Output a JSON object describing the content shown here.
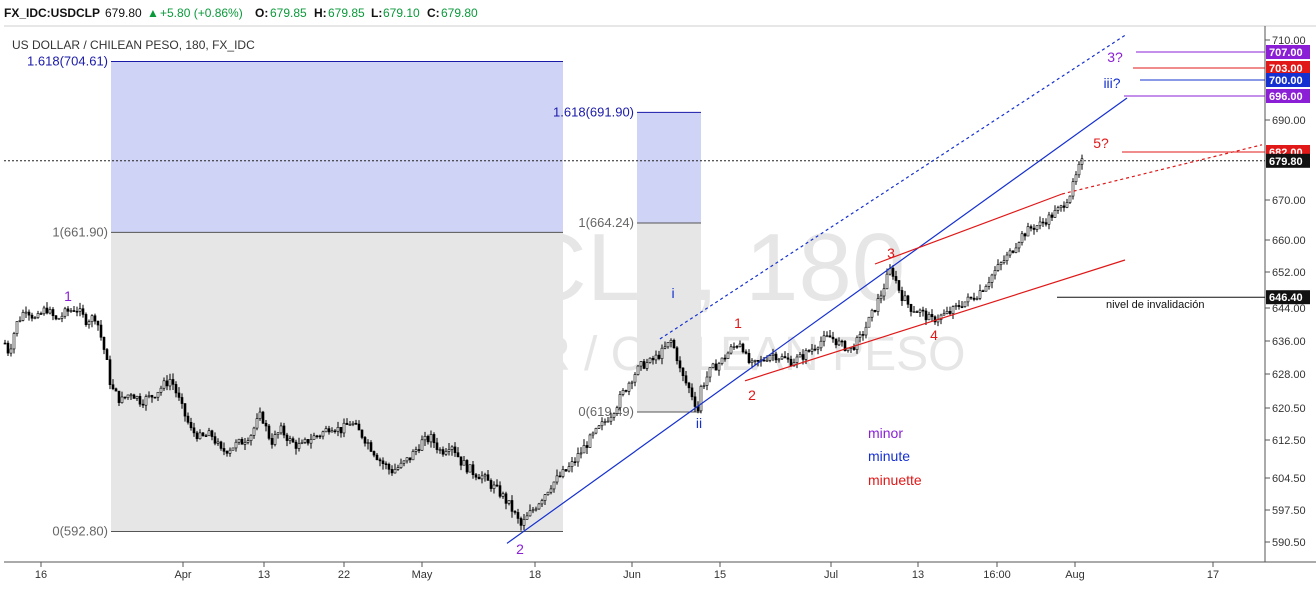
{
  "topbar": {
    "symbol": "FX_IDC:USDCLP",
    "price": "679.80",
    "change": "+5.80 (+0.86%)",
    "o_label": "O:",
    "o_val": "679.85",
    "h_label": "H:",
    "h_val": "679.85",
    "l_label": "L:",
    "l_val": "679.10",
    "c_label": "C:",
    "c_val": "679.80"
  },
  "colors": {
    "minor": "#8a1fd6",
    "minute": "#1530d0",
    "minuette": "#e01818",
    "fib_fill": "#cfd3f5",
    "range_fill": "#e6e6e6",
    "candle": "#000000",
    "watermark": "#e6e6e6"
  },
  "chart_data": {
    "type": "candlestick",
    "title": "US DOLLAR / CHILEAN PESO, 180, FX_IDC",
    "watermark": {
      "line1": "USDCLP, 180",
      "line2": "US DOLLAR / CHILEAN PESO"
    },
    "y_ticks": [
      "710.00",
      "690.00",
      "670.00",
      "660.00",
      "652.00",
      "644.00",
      "636.00",
      "628.00",
      "620.50",
      "612.50",
      "604.50",
      "597.50",
      "590.50"
    ],
    "y_tick_values": [
      710,
      690,
      670,
      660,
      652,
      644,
      636,
      628,
      620.5,
      612.5,
      604.5,
      597.5,
      590.5
    ],
    "x_ticks": [
      "16",
      "Apr",
      "13",
      "22",
      "May",
      "18",
      "Jun",
      "15",
      "Jul",
      "13",
      "16:00",
      "Aug",
      "17"
    ],
    "current_price": 679.8,
    "price_tags": [
      {
        "label": "707.00",
        "value": 707,
        "color": "minor"
      },
      {
        "label": "703.00",
        "value": 703,
        "color": "minuette"
      },
      {
        "label": "700.00",
        "value": 700,
        "color": "minute"
      },
      {
        "label": "696.00",
        "value": 696,
        "color": "minor"
      },
      {
        "label": "682.00",
        "value": 682,
        "color": "minuette"
      },
      {
        "label": "679.80",
        "value": 679.8,
        "color": "black"
      },
      {
        "label": "646.40",
        "value": 646.4,
        "color": "black"
      }
    ],
    "fib_levels": [
      {
        "label": "1.618(704.61)",
        "value": 704.61
      },
      {
        "label": "1(661.90)",
        "value": 661.9
      },
      {
        "label": "0(592.80)",
        "value": 592.8
      },
      {
        "label": "1.618(691.90)",
        "value": 691.9
      },
      {
        "label": "1(664.24)",
        "value": 664.24
      },
      {
        "label": "0(619.49)",
        "value": 619.49
      }
    ],
    "wave_labels": [
      {
        "text": "1",
        "degree": "minor"
      },
      {
        "text": "2",
        "degree": "minor"
      },
      {
        "text": "3?",
        "degree": "minor"
      },
      {
        "text": "i",
        "degree": "minute"
      },
      {
        "text": "ii",
        "degree": "minute"
      },
      {
        "text": "iii?",
        "degree": "minute"
      },
      {
        "text": "1",
        "degree": "minuette"
      },
      {
        "text": "2",
        "degree": "minuette"
      },
      {
        "text": "3",
        "degree": "minuette"
      },
      {
        "text": "4",
        "degree": "minuette"
      },
      {
        "text": "5?",
        "degree": "minuette"
      }
    ],
    "invalidation_label": "nivel de invalidación",
    "invalidation_value": 646.4,
    "legend": [
      "minor",
      "minute",
      "minuette"
    ],
    "anchors": [
      [
        0,
        638
      ],
      [
        8,
        633
      ],
      [
        15,
        640
      ],
      [
        25,
        644
      ],
      [
        35,
        641
      ],
      [
        45,
        644
      ],
      [
        55,
        641
      ],
      [
        65,
        643
      ],
      [
        75,
        644
      ],
      [
        85,
        641
      ],
      [
        95,
        642
      ],
      [
        100,
        637
      ],
      [
        105,
        632
      ],
      [
        110,
        625
      ],
      [
        120,
        622
      ],
      [
        130,
        624
      ],
      [
        140,
        622
      ],
      [
        150,
        623
      ],
      [
        160,
        625
      ],
      [
        170,
        627
      ],
      [
        180,
        621
      ],
      [
        190,
        615
      ],
      [
        200,
        613
      ],
      [
        210,
        614
      ],
      [
        220,
        610
      ],
      [
        230,
        611
      ],
      [
        240,
        612
      ],
      [
        250,
        614
      ],
      [
        260,
        619
      ],
      [
        270,
        612
      ],
      [
        280,
        615
      ],
      [
        290,
        612
      ],
      [
        300,
        611
      ],
      [
        310,
        613
      ],
      [
        320,
        614
      ],
      [
        330,
        616
      ],
      [
        340,
        615
      ],
      [
        350,
        617
      ],
      [
        360,
        614
      ],
      [
        370,
        611
      ],
      [
        380,
        608
      ],
      [
        390,
        606
      ],
      [
        400,
        607
      ],
      [
        410,
        609
      ],
      [
        420,
        612
      ],
      [
        430,
        613
      ],
      [
        440,
        610
      ],
      [
        450,
        612
      ],
      [
        460,
        608
      ],
      [
        470,
        606
      ],
      [
        480,
        605
      ],
      [
        490,
        603
      ],
      [
        500,
        601
      ],
      [
        510,
        598
      ],
      [
        520,
        594
      ],
      [
        530,
        597
      ],
      [
        540,
        600
      ],
      [
        550,
        603
      ],
      [
        560,
        605
      ],
      [
        570,
        607
      ],
      [
        580,
        610
      ],
      [
        590,
        613
      ],
      [
        600,
        616
      ],
      [
        610,
        619
      ],
      [
        620,
        623
      ],
      [
        630,
        627
      ],
      [
        640,
        630
      ],
      [
        650,
        631
      ],
      [
        660,
        633
      ],
      [
        670,
        636
      ],
      [
        675,
        633
      ],
      [
        680,
        628
      ],
      [
        690,
        624
      ],
      [
        697,
        620
      ],
      [
        700,
        625
      ],
      [
        710,
        629
      ],
      [
        720,
        631
      ],
      [
        730,
        634
      ],
      [
        740,
        636
      ],
      [
        745,
        632
      ],
      [
        750,
        630
      ],
      [
        760,
        631
      ],
      [
        770,
        633
      ],
      [
        780,
        632
      ],
      [
        790,
        631
      ],
      [
        800,
        632
      ],
      [
        810,
        634
      ],
      [
        820,
        636
      ],
      [
        830,
        637
      ],
      [
        840,
        635
      ],
      [
        850,
        634
      ],
      [
        860,
        637
      ],
      [
        870,
        642
      ],
      [
        880,
        647
      ],
      [
        890,
        653
      ],
      [
        895,
        650
      ],
      [
        900,
        647
      ],
      [
        910,
        644
      ],
      [
        920,
        643
      ],
      [
        930,
        641
      ],
      [
        940,
        642
      ],
      [
        950,
        643
      ],
      [
        960,
        645
      ],
      [
        970,
        646
      ],
      [
        980,
        648
      ],
      [
        990,
        651
      ],
      [
        1000,
        654
      ],
      [
        1010,
        657
      ],
      [
        1020,
        661
      ],
      [
        1030,
        663
      ],
      [
        1040,
        664
      ],
      [
        1050,
        666
      ],
      [
        1060,
        668
      ],
      [
        1070,
        672
      ],
      [
        1078,
        678
      ],
      [
        1082,
        679.8
      ]
    ]
  }
}
